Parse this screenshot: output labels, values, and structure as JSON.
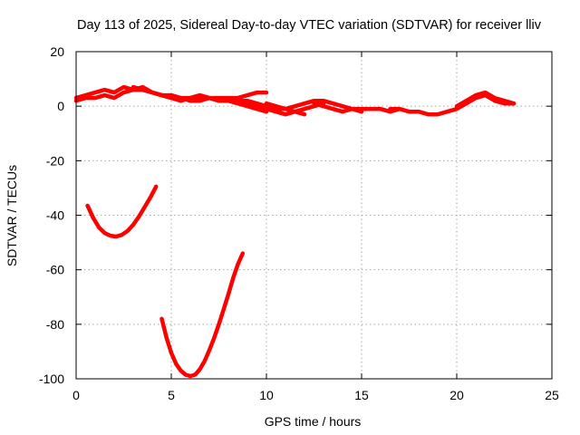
{
  "chart_data": {
    "type": "line",
    "title": "Day 113 of 2025, Sidereal Day-to-day VTEC variation (SDTVAR) for receiver lliv",
    "xlabel": "GPS time / hours",
    "ylabel": "SDTVAR / TECUs",
    "xlim": [
      0,
      25
    ],
    "ylim": [
      -100,
      20
    ],
    "xticks": [
      0,
      5,
      10,
      15,
      20,
      25
    ],
    "yticks": [
      20,
      0,
      -20,
      -40,
      -60,
      -80,
      -100
    ],
    "grid": true,
    "legend": "none",
    "colors": {
      "series": "#ff0000",
      "grid": "#a8a8a8",
      "axes": "#000000"
    },
    "series": [
      {
        "name": "arc-1",
        "x": [
          0.0,
          0.5,
          1.0,
          1.5,
          2.0,
          2.5,
          3.0,
          3.5,
          4.0,
          4.5,
          5.0,
          5.5,
          6.0,
          6.5,
          7.0,
          7.5,
          8.0,
          8.5,
          9.0,
          9.5,
          10.0
        ],
        "y": [
          3,
          4,
          5,
          6,
          5,
          7,
          6,
          7,
          5,
          4,
          3,
          3,
          2,
          2,
          3,
          2,
          2,
          1,
          0,
          -1,
          -2
        ]
      },
      {
        "name": "arc-2",
        "x": [
          0.0,
          0.5,
          1.0,
          1.5,
          2.0,
          2.5,
          3.0,
          3.5,
          4.0,
          4.5,
          5.0,
          5.5,
          6.0,
          6.5,
          7.0,
          7.5,
          8.0,
          8.5,
          9.0,
          9.5,
          10.0,
          10.5,
          11.0,
          11.5,
          12.0
        ],
        "y": [
          2,
          3,
          3,
          4,
          3,
          5,
          6,
          6,
          5,
          4,
          3,
          2,
          3,
          3,
          3,
          2,
          2,
          2,
          2,
          1,
          0,
          -1,
          -1,
          -2,
          -3
        ]
      },
      {
        "name": "arc-3",
        "x": [
          3.0,
          3.5,
          4.0,
          4.5,
          5.0,
          5.5,
          6.0,
          6.5,
          7.0,
          7.5,
          8.0,
          8.5,
          9.0,
          9.5,
          10.0
        ],
        "y": [
          7,
          6,
          5,
          4,
          4,
          3,
          3,
          4,
          3,
          3,
          3,
          3,
          4,
          5,
          5
        ]
      },
      {
        "name": "arc-4",
        "x": [
          8.0,
          8.5,
          9.0,
          9.5,
          10.0,
          10.5,
          11.0,
          11.5,
          12.0,
          12.5,
          13.0
        ],
        "y": [
          3,
          2,
          1,
          0,
          -1,
          -2,
          -3,
          -2,
          -1,
          0,
          1
        ]
      },
      {
        "name": "arc-5",
        "x": [
          10.0,
          10.5,
          11.0,
          11.5,
          12.0,
          12.5,
          13.0,
          13.5,
          14.0,
          14.5,
          15.0
        ],
        "y": [
          1,
          0,
          -1,
          0,
          1,
          2,
          2,
          1,
          0,
          -1,
          -2
        ]
      },
      {
        "name": "arc-6",
        "x": [
          12.5,
          13.0,
          13.5,
          14.0,
          14.5,
          15.0,
          15.5,
          16.0,
          16.5,
          17.0
        ],
        "y": [
          1,
          0,
          -1,
          -2,
          -1,
          -1,
          -1,
          -1,
          -2,
          -1
        ]
      },
      {
        "name": "arc-7",
        "x": [
          16.5,
          17.0,
          17.5,
          18.0,
          18.5,
          19.0,
          19.5,
          20.0,
          20.5,
          21.0,
          21.5,
          22.0,
          22.5,
          23.0
        ],
        "y": [
          -1,
          -1,
          -2,
          -2,
          -3,
          -3,
          -2,
          -1,
          1,
          3,
          4,
          2,
          1,
          1
        ]
      },
      {
        "name": "arc-8",
        "x": [
          20.0,
          20.5,
          21.0,
          21.5,
          22.0,
          22.5,
          23.0
        ],
        "y": [
          0,
          2,
          4,
          5,
          3,
          2,
          1
        ]
      },
      {
        "name": "arc-9",
        "x": [
          0.6,
          0.9,
          1.2,
          1.5,
          1.8,
          2.1,
          2.4,
          2.7,
          3.0,
          3.3,
          3.6,
          3.9,
          4.2
        ],
        "y": [
          -36.5,
          -41,
          -44.5,
          -46.5,
          -47.5,
          -47.8,
          -47.2,
          -45.8,
          -43.5,
          -40.5,
          -37,
          -33.5,
          -29.5
        ]
      },
      {
        "name": "arc-10",
        "x": [
          4.5,
          4.75,
          5.0,
          5.25,
          5.5,
          5.75,
          6.0,
          6.25,
          6.5,
          6.75,
          7.0,
          7.25,
          7.5,
          7.75,
          8.0,
          8.25,
          8.5,
          8.75
        ],
        "y": [
          -78,
          -85,
          -90.5,
          -94.5,
          -97,
          -98.5,
          -99,
          -98.5,
          -96.5,
          -93.5,
          -89.5,
          -85,
          -80,
          -74.5,
          -69,
          -63,
          -58,
          -54
        ]
      }
    ]
  }
}
